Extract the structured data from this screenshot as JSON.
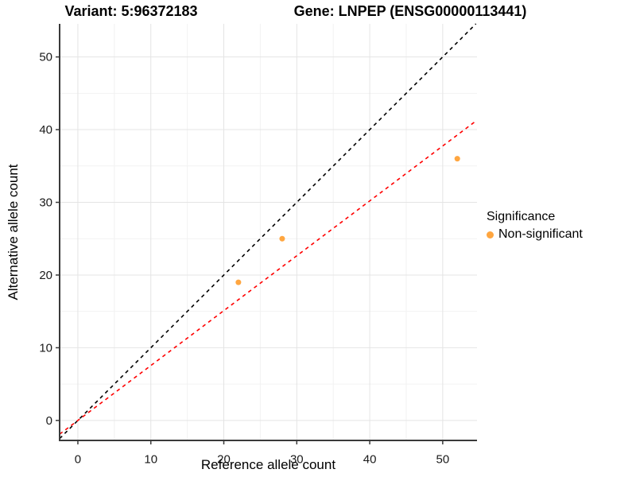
{
  "chart_data": {
    "type": "scatter",
    "titles": {
      "left": "Variant: 5:96372183",
      "right": "Gene: LNPEP (ENSG00000113441)"
    },
    "xlabel": "Reference allele count",
    "ylabel": "Alternative allele count",
    "xlim": [
      -2.5,
      54.7
    ],
    "ylim": [
      -2.75,
      54.55
    ],
    "xticks": [
      0,
      10,
      20,
      30,
      40,
      50
    ],
    "yticks": [
      0,
      10,
      20,
      30,
      40,
      50
    ],
    "minor_xticks": [
      5,
      15,
      25,
      35,
      45
    ],
    "minor_yticks": [
      5,
      15,
      25,
      35,
      45
    ],
    "grid": true,
    "series": [
      {
        "name": "Non-significant",
        "color": "#FFA640",
        "points": [
          {
            "x": 22,
            "y": 19
          },
          {
            "x": 28,
            "y": 25
          },
          {
            "x": 52,
            "y": 36
          }
        ]
      }
    ],
    "lines": [
      {
        "name": "identity-line",
        "slope": 1,
        "intercept": 0,
        "color": "#000000",
        "style": "dashed"
      },
      {
        "name": "fit-line",
        "slope": 0.755,
        "intercept": 0,
        "color": "#FF0000",
        "style": "dashed"
      }
    ],
    "legend": {
      "title": "Significance",
      "position": "right",
      "items": [
        {
          "label": "Non-significant",
          "color": "#FFA640"
        }
      ]
    },
    "colors": {
      "grid_major": "#E4E4E4",
      "grid_minor": "#F2F2F2",
      "axis": "#3A3A3A",
      "tick_text": "#1A1A1A"
    }
  }
}
